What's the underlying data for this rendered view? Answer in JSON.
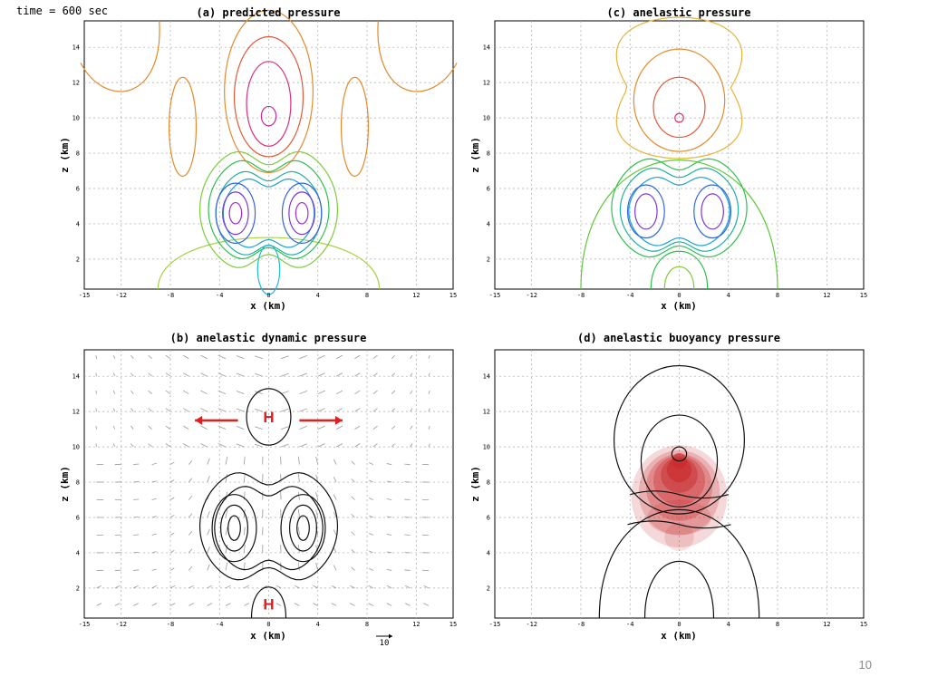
{
  "time_label": "time = 600 sec",
  "page_number": "10",
  "colors": {
    "grid": "#a8a8a8",
    "arrow_red": "#e02020",
    "vector_gray": "#9a9a9a",
    "shading_red": "#c8282a",
    "contour_black": "#111111"
  },
  "h_marker_text": "H",
  "vector_ref_label": "10",
  "chart_data": [
    {
      "id": "a",
      "type": "contour",
      "title": "(a)  predicted pressure",
      "xlabel": "x (km)",
      "ylabel": "z (km)",
      "xlim": [
        -15,
        15
      ],
      "ylim": [
        0.3,
        15.5
      ],
      "xticks": [
        "-15",
        "-12",
        "-8",
        "-4",
        "0",
        "4",
        "8",
        "12",
        "15"
      ],
      "yticks": [
        "2",
        "4",
        "6",
        "8",
        "10",
        "12",
        "14"
      ],
      "grid": true,
      "contours": [
        {
          "color": "#e48a2c",
          "shape": "lobe",
          "center": [
            -12.5,
            14
          ],
          "radius": [
            4,
            2.2
          ]
        },
        {
          "color": "#e48a2c",
          "shape": "lobe",
          "center": [
            12.5,
            14
          ],
          "radius": [
            4,
            2.2
          ]
        },
        {
          "color": "#e48a2c",
          "shape": "ellipse",
          "center": [
            0,
            11.5
          ],
          "radius": [
            3.6,
            4.6
          ]
        },
        {
          "color": "#e48a2c",
          "shape": "ellipse",
          "center": [
            -7,
            9.5
          ],
          "radius": [
            1.1,
            2.8
          ]
        },
        {
          "color": "#e48a2c",
          "shape": "ellipse",
          "center": [
            7,
            9.5
          ],
          "radius": [
            1.1,
            2.8
          ]
        },
        {
          "color": "#e05a3a",
          "shape": "ellipse",
          "center": [
            0,
            11.2
          ],
          "radius": [
            2.8,
            3.4
          ]
        },
        {
          "color": "#d8307a",
          "shape": "ellipse",
          "center": [
            0,
            10.8
          ],
          "radius": [
            1.8,
            2.4
          ]
        },
        {
          "color": "#c82a9a",
          "shape": "ellipse",
          "center": [
            0,
            10.1
          ],
          "radius": [
            0.6,
            0.55
          ]
        },
        {
          "color": "#a6d046",
          "shape": "arch",
          "center": [
            0,
            0.3
          ],
          "radius": [
            9,
            3
          ]
        },
        {
          "color": "#7ccc3a",
          "shape": "dumbbell",
          "center": [
            0,
            4.8
          ],
          "radius": [
            5.6,
            3.9
          ]
        },
        {
          "color": "#2fbf4e",
          "shape": "dumbbell",
          "center": [
            0,
            4.8
          ],
          "radius": [
            4.9,
            3.3
          ]
        },
        {
          "color": "#20b0a0",
          "shape": "dumbbell",
          "center": [
            0,
            4.6
          ],
          "radius": [
            4.3,
            2.8
          ]
        },
        {
          "color": "#1fa0d0",
          "shape": "dumbbell",
          "center": [
            0,
            4.6
          ],
          "radius": [
            3.7,
            2.3
          ]
        },
        {
          "color": "#3366dd",
          "shape": "ellipse",
          "center": [
            -2.7,
            4.6
          ],
          "radius": [
            1.6,
            1.7
          ]
        },
        {
          "color": "#3366dd",
          "shape": "ellipse",
          "center": [
            2.7,
            4.6
          ],
          "radius": [
            1.6,
            1.7
          ]
        },
        {
          "color": "#7a3ad8",
          "shape": "ellipse",
          "center": [
            -2.7,
            4.6
          ],
          "radius": [
            1.05,
            1.2
          ]
        },
        {
          "color": "#7a3ad8",
          "shape": "ellipse",
          "center": [
            2.7,
            4.6
          ],
          "radius": [
            1.05,
            1.2
          ]
        },
        {
          "color": "#a02ad0",
          "shape": "ellipse",
          "center": [
            -2.7,
            4.6
          ],
          "radius": [
            0.5,
            0.6
          ]
        },
        {
          "color": "#a02ad0",
          "shape": "ellipse",
          "center": [
            2.7,
            4.6
          ],
          "radius": [
            0.5,
            0.6
          ]
        },
        {
          "color": "#20b8d8",
          "shape": "ellipse",
          "center": [
            0,
            1.4
          ],
          "radius": [
            0.9,
            1.4
          ]
        }
      ]
    },
    {
      "id": "c",
      "type": "contour",
      "title": "(c)  anelastic pressure",
      "xlabel": "x (km)",
      "ylabel": "z (km)",
      "xlim": [
        -15,
        15
      ],
      "ylim": [
        0.3,
        15.5
      ],
      "xticks": [
        "-15",
        "-12",
        "-8",
        "-4",
        "0",
        "4",
        "8",
        "12",
        "15"
      ],
      "yticks": [
        "2",
        "4",
        "6",
        "8",
        "10",
        "12",
        "14"
      ],
      "grid": true,
      "contours": [
        {
          "color": "#e8b23a",
          "shape": "butterfly",
          "center": [
            0,
            11.7
          ],
          "radius": [
            7.6,
            4
          ]
        },
        {
          "color": "#e48a2c",
          "shape": "ellipse",
          "center": [
            0,
            11
          ],
          "radius": [
            3.7,
            2.9
          ]
        },
        {
          "color": "#e05a3a",
          "shape": "ellipse",
          "center": [
            0,
            10.6
          ],
          "radius": [
            2.1,
            1.7
          ]
        },
        {
          "color": "#d8307a",
          "shape": "ellipse",
          "center": [
            0,
            10
          ],
          "radius": [
            0.35,
            0.25
          ]
        },
        {
          "color": "#5cc83a",
          "shape": "arch",
          "center": [
            0,
            0.3
          ],
          "radius": [
            8,
            7.5
          ]
        },
        {
          "color": "#2fbf4e",
          "shape": "dumbbell",
          "center": [
            0,
            4.9
          ],
          "radius": [
            5.5,
            3.3
          ]
        },
        {
          "color": "#20b0a0",
          "shape": "dumbbell",
          "center": [
            0,
            4.8
          ],
          "radius": [
            4.8,
            2.8
          ]
        },
        {
          "color": "#1fa0d0",
          "shape": "dumbbell",
          "center": [
            0,
            4.7
          ],
          "radius": [
            4.1,
            2.3
          ]
        },
        {
          "color": "#3366dd",
          "shape": "ellipse",
          "center": [
            -2.7,
            4.7
          ],
          "radius": [
            1.5,
            1.5
          ]
        },
        {
          "color": "#3366dd",
          "shape": "ellipse",
          "center": [
            2.7,
            4.7
          ],
          "radius": [
            1.5,
            1.5
          ]
        },
        {
          "color": "#7a3ad8",
          "shape": "ellipse",
          "center": [
            -2.7,
            4.7
          ],
          "radius": [
            0.9,
            1
          ]
        },
        {
          "color": "#7a3ad8",
          "shape": "ellipse",
          "center": [
            2.7,
            4.7
          ],
          "radius": [
            0.9,
            1
          ]
        },
        {
          "color": "#2fbf4e",
          "shape": "arch",
          "center": [
            0,
            0.3
          ],
          "radius": [
            2.3,
            2.2
          ]
        },
        {
          "color": "#7ccc3a",
          "shape": "arch",
          "center": [
            0,
            0.3
          ],
          "radius": [
            1.2,
            1.3
          ]
        }
      ]
    },
    {
      "id": "b",
      "type": "contour",
      "title": "(b)  anelastic dynamic pressure",
      "xlabel": "x (km)",
      "ylabel": "z (km)",
      "xlim": [
        -15,
        15
      ],
      "ylim": [
        0.3,
        15.5
      ],
      "xticks": [
        "-15",
        "-12",
        "-8",
        "-4",
        "0",
        "4",
        "8",
        "12",
        "15"
      ],
      "yticks": [
        "2",
        "4",
        "6",
        "8",
        "10",
        "12",
        "14"
      ],
      "grid": true,
      "vectors": true,
      "h_markers": [
        {
          "x": 0,
          "z": 11.7
        },
        {
          "x": 0,
          "z": 1.1
        }
      ],
      "arrows": [
        {
          "from": [
            -2.5,
            11.5
          ],
          "to": [
            -6,
            11.5
          ]
        },
        {
          "from": [
            2.5,
            11.5
          ],
          "to": [
            6,
            11.5
          ]
        }
      ],
      "contours": [
        {
          "color": "#111111",
          "shape": "ellipse",
          "center": [
            0,
            11.7
          ],
          "radius": [
            1.8,
            1.6
          ]
        },
        {
          "color": "#111111",
          "shape": "dumbbell",
          "center": [
            0,
            5.5
          ],
          "radius": [
            5.6,
            3.6
          ]
        },
        {
          "color": "#111111",
          "shape": "dumbbell",
          "center": [
            0,
            5.4
          ],
          "radius": [
            4.4,
            2.8
          ]
        },
        {
          "color": "#111111",
          "shape": "ellipse",
          "center": [
            -2.8,
            5.4
          ],
          "radius": [
            1.8,
            1.9
          ]
        },
        {
          "color": "#111111",
          "shape": "ellipse",
          "center": [
            2.8,
            5.4
          ],
          "radius": [
            1.8,
            1.9
          ]
        },
        {
          "color": "#111111",
          "shape": "ellipse",
          "center": [
            -2.8,
            5.4
          ],
          "radius": [
            1.1,
            1.3
          ]
        },
        {
          "color": "#111111",
          "shape": "ellipse",
          "center": [
            2.8,
            5.4
          ],
          "radius": [
            1.1,
            1.3
          ]
        },
        {
          "color": "#111111",
          "shape": "ellipse",
          "center": [
            -2.8,
            5.4
          ],
          "radius": [
            0.5,
            0.7
          ]
        },
        {
          "color": "#111111",
          "shape": "ellipse",
          "center": [
            2.8,
            5.4
          ],
          "radius": [
            0.5,
            0.7
          ]
        },
        {
          "color": "#111111",
          "shape": "arch",
          "center": [
            0,
            0.3
          ],
          "radius": [
            1.4,
            1.8
          ]
        }
      ]
    },
    {
      "id": "d",
      "type": "contour",
      "title": "(d)  anelastic buoyancy pressure",
      "xlabel": "x (km)",
      "ylabel": "z (km)",
      "xlim": [
        -15,
        15
      ],
      "ylim": [
        0.3,
        15.5
      ],
      "xticks": [
        "-15",
        "-12",
        "-8",
        "-4",
        "0",
        "4",
        "8",
        "12",
        "15"
      ],
      "yticks": [
        "2",
        "4",
        "6",
        "8",
        "10",
        "12",
        "14"
      ],
      "grid": true,
      "shading": true,
      "contours": [
        {
          "color": "#111111",
          "shape": "ellipse",
          "center": [
            0,
            10.4
          ],
          "radius": [
            5.3,
            4.2
          ]
        },
        {
          "color": "#111111",
          "shape": "ellipse",
          "center": [
            0,
            9.2
          ],
          "radius": [
            3.1,
            2.6
          ]
        },
        {
          "color": "#111111",
          "shape": "ellipse",
          "center": [
            0,
            9.6
          ],
          "radius": [
            0.6,
            0.4
          ]
        },
        {
          "color": "#111111",
          "shape": "arch",
          "center": [
            0,
            0.3
          ],
          "radius": [
            6.5,
            6.3
          ]
        },
        {
          "color": "#111111",
          "shape": "arch",
          "center": [
            0,
            0.3
          ],
          "radius": [
            2.8,
            3.3
          ]
        },
        {
          "color": "#111111",
          "shape": "wave",
          "center": [
            0,
            7.3
          ],
          "radius": [
            4,
            0.4
          ]
        },
        {
          "color": "#111111",
          "shape": "wave",
          "center": [
            0,
            5.6
          ],
          "radius": [
            4.2,
            0.4
          ]
        }
      ]
    }
  ]
}
